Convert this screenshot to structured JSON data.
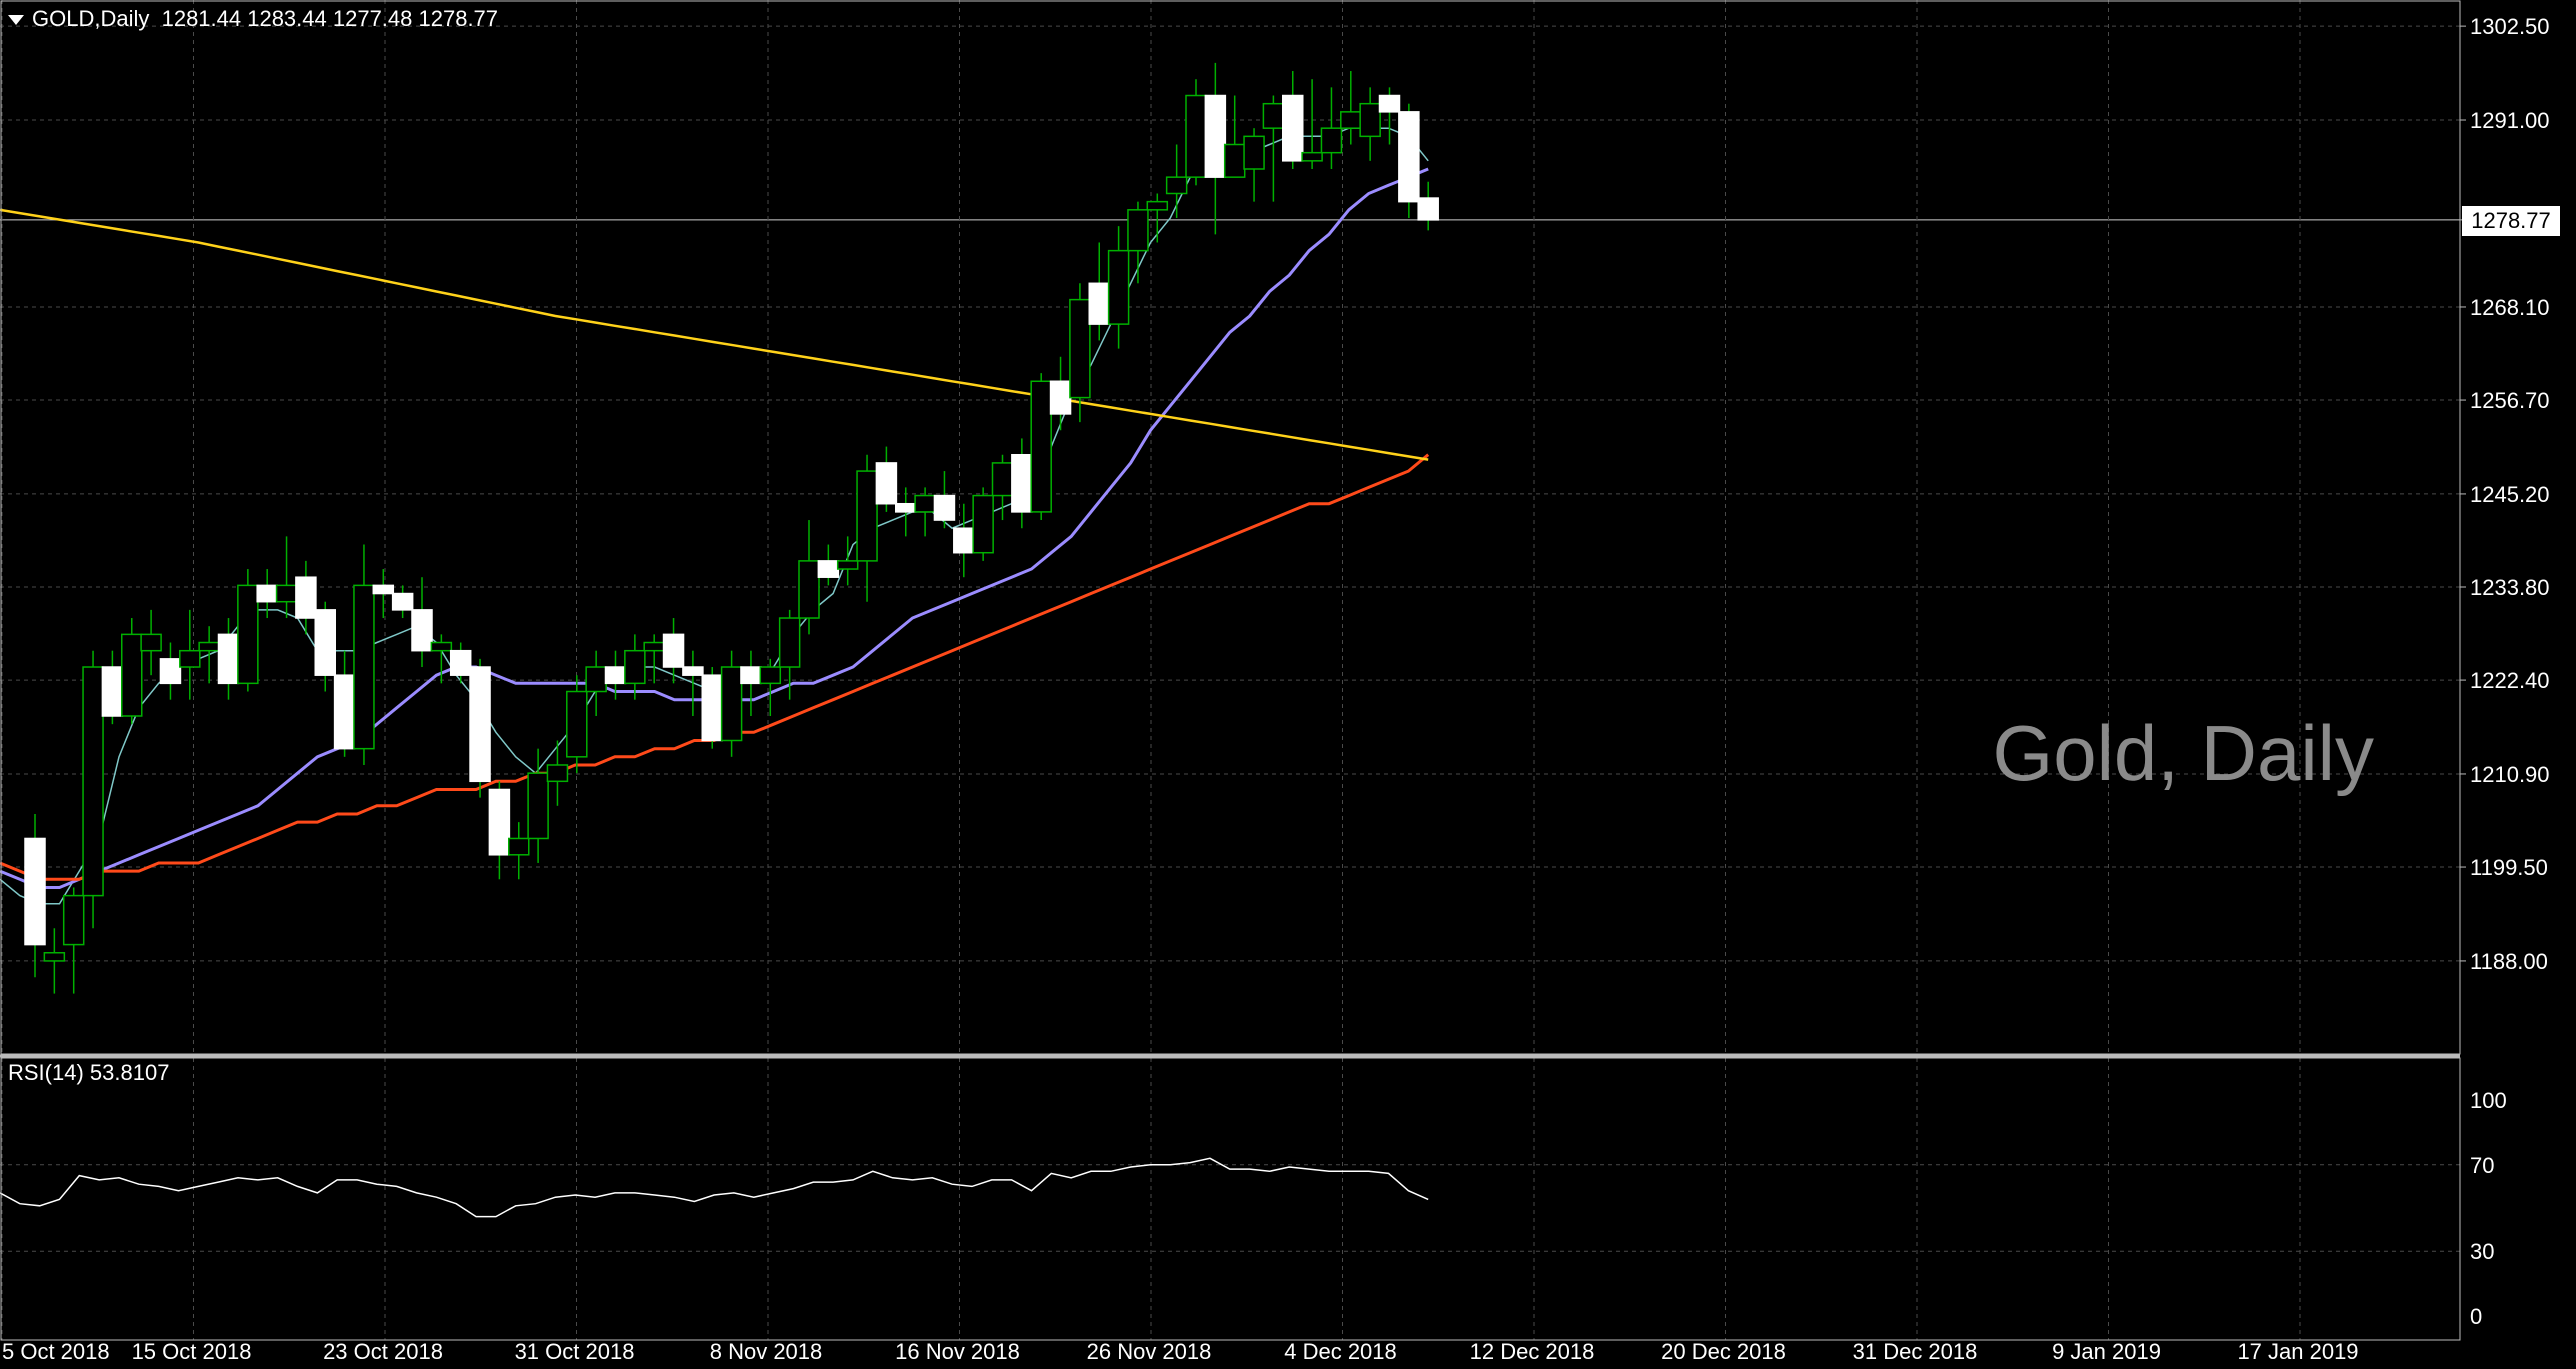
{
  "header": {
    "symbol": "GOLD,Daily",
    "ohlc": "1281.44 1283.44 1277.48 1278.77"
  },
  "watermark": "Gold, Daily",
  "current_price_label": "1278.77",
  "rsi": {
    "label": "RSI(14) 53.8107"
  },
  "colors": {
    "background": "#000000",
    "grid": "#4a4a4a",
    "candle": "#ffffff",
    "wick": "#00b000",
    "ma_fast": "#7fc8c8",
    "ma_mid": "#9b8cff",
    "ma_slow": "#ff4a1a",
    "ma_long": "#ffd21a",
    "rsi_line": "#ffffff"
  },
  "chart_data": [
    {
      "type": "candlestick",
      "title": "Gold, Daily",
      "y_ticks": [
        "1302.50",
        "1291.00",
        "1278.77",
        "1268.10",
        "1256.70",
        "1245.20",
        "1233.80",
        "1222.40",
        "1210.90",
        "1199.50",
        "1188.00"
      ],
      "ylim": [
        1176.6,
        1305.7
      ],
      "x_ticks": [
        "5 Oct 2018",
        "15 Oct 2018",
        "23 Oct 2018",
        "31 Oct 2018",
        "8 Nov 2018",
        "16 Nov 2018",
        "26 Nov 2018",
        "4 Dec 2018",
        "12 Dec 2018",
        "20 Dec 2018",
        "31 Dec 2018",
        "9 Jan 2019",
        "17 Jan 2019"
      ],
      "grid": true,
      "candles": [
        {
          "o": 1203,
          "h": 1206,
          "l": 1186,
          "c": 1190
        },
        {
          "o": 1188,
          "h": 1192,
          "l": 1184,
          "c": 1189
        },
        {
          "o": 1190,
          "h": 1197,
          "l": 1184,
          "c": 1196
        },
        {
          "o": 1196,
          "h": 1226,
          "l": 1192,
          "c": 1224
        },
        {
          "o": 1224,
          "h": 1226,
          "l": 1217,
          "c": 1218
        },
        {
          "o": 1218,
          "h": 1230,
          "l": 1217,
          "c": 1228
        },
        {
          "o": 1226,
          "h": 1231,
          "l": 1223,
          "c": 1228
        },
        {
          "o": 1225,
          "h": 1227,
          "l": 1220,
          "c": 1222
        },
        {
          "o": 1224,
          "h": 1231,
          "l": 1220,
          "c": 1226
        },
        {
          "o": 1226,
          "h": 1229,
          "l": 1222,
          "c": 1227
        },
        {
          "o": 1228,
          "h": 1230,
          "l": 1220,
          "c": 1222
        },
        {
          "o": 1222,
          "h": 1236,
          "l": 1221,
          "c": 1234
        },
        {
          "o": 1234,
          "h": 1236,
          "l": 1230,
          "c": 1232
        },
        {
          "o": 1232,
          "h": 1240,
          "l": 1230,
          "c": 1234
        },
        {
          "o": 1235,
          "h": 1237,
          "l": 1228,
          "c": 1230
        },
        {
          "o": 1231,
          "h": 1232,
          "l": 1221,
          "c": 1223
        },
        {
          "o": 1223,
          "h": 1226,
          "l": 1213,
          "c": 1214
        },
        {
          "o": 1214,
          "h": 1239,
          "l": 1212,
          "c": 1234
        },
        {
          "o": 1234,
          "h": 1236,
          "l": 1230,
          "c": 1233
        },
        {
          "o": 1233,
          "h": 1234,
          "l": 1230,
          "c": 1231
        },
        {
          "o": 1231,
          "h": 1235,
          "l": 1224,
          "c": 1226
        },
        {
          "o": 1226,
          "h": 1228,
          "l": 1222,
          "c": 1227
        },
        {
          "o": 1226,
          "h": 1227,
          "l": 1222,
          "c": 1223
        },
        {
          "o": 1224,
          "h": 1225,
          "l": 1208,
          "c": 1210
        },
        {
          "o": 1209,
          "h": 1210,
          "l": 1198,
          "c": 1201
        },
        {
          "o": 1201,
          "h": 1205,
          "l": 1198,
          "c": 1203
        },
        {
          "o": 1203,
          "h": 1214,
          "l": 1200,
          "c": 1211
        },
        {
          "o": 1210,
          "h": 1215,
          "l": 1207,
          "c": 1212
        },
        {
          "o": 1213,
          "h": 1223,
          "l": 1211,
          "c": 1221
        },
        {
          "o": 1221,
          "h": 1226,
          "l": 1218,
          "c": 1224
        },
        {
          "o": 1224,
          "h": 1226,
          "l": 1220,
          "c": 1222
        },
        {
          "o": 1222,
          "h": 1228,
          "l": 1220,
          "c": 1226
        },
        {
          "o": 1226,
          "h": 1228,
          "l": 1222,
          "c": 1227
        },
        {
          "o": 1228,
          "h": 1230,
          "l": 1222,
          "c": 1224
        },
        {
          "o": 1224,
          "h": 1226,
          "l": 1218,
          "c": 1223
        },
        {
          "o": 1223,
          "h": 1224,
          "l": 1214,
          "c": 1215
        },
        {
          "o": 1215,
          "h": 1226,
          "l": 1213,
          "c": 1224
        },
        {
          "o": 1224,
          "h": 1226,
          "l": 1218,
          "c": 1222
        },
        {
          "o": 1222,
          "h": 1225,
          "l": 1218,
          "c": 1224
        },
        {
          "o": 1224,
          "h": 1231,
          "l": 1220,
          "c": 1230
        },
        {
          "o": 1230,
          "h": 1242,
          "l": 1228,
          "c": 1237
        },
        {
          "o": 1237,
          "h": 1239,
          "l": 1234,
          "c": 1235
        },
        {
          "o": 1236,
          "h": 1240,
          "l": 1234,
          "c": 1237
        },
        {
          "o": 1237,
          "h": 1250,
          "l": 1232,
          "c": 1248
        },
        {
          "o": 1249,
          "h": 1251,
          "l": 1243,
          "c": 1244
        },
        {
          "o": 1244,
          "h": 1246,
          "l": 1240,
          "c": 1243
        },
        {
          "o": 1243,
          "h": 1246,
          "l": 1240,
          "c": 1245
        },
        {
          "o": 1245,
          "h": 1248,
          "l": 1241,
          "c": 1242
        },
        {
          "o": 1241,
          "h": 1244,
          "l": 1235,
          "c": 1238
        },
        {
          "o": 1238,
          "h": 1246,
          "l": 1237,
          "c": 1245
        },
        {
          "o": 1245,
          "h": 1250,
          "l": 1242,
          "c": 1249
        },
        {
          "o": 1250,
          "h": 1252,
          "l": 1241,
          "c": 1243
        },
        {
          "o": 1243,
          "h": 1260,
          "l": 1242,
          "c": 1259
        },
        {
          "o": 1259,
          "h": 1262,
          "l": 1253,
          "c": 1255
        },
        {
          "o": 1257,
          "h": 1271,
          "l": 1254,
          "c": 1269
        },
        {
          "o": 1271,
          "h": 1276,
          "l": 1264,
          "c": 1266
        },
        {
          "o": 1266,
          "h": 1278,
          "l": 1263,
          "c": 1275
        },
        {
          "o": 1275,
          "h": 1281,
          "l": 1271,
          "c": 1280
        },
        {
          "o": 1280,
          "h": 1282,
          "l": 1276,
          "c": 1281
        },
        {
          "o": 1282,
          "h": 1288,
          "l": 1279,
          "c": 1284
        },
        {
          "o": 1284,
          "h": 1296,
          "l": 1283,
          "c": 1294
        },
        {
          "o": 1294,
          "h": 1298,
          "l": 1277,
          "c": 1284
        },
        {
          "o": 1284,
          "h": 1294,
          "l": 1284,
          "c": 1288
        },
        {
          "o": 1285,
          "h": 1290,
          "l": 1281,
          "c": 1289
        },
        {
          "o": 1290,
          "h": 1294,
          "l": 1281,
          "c": 1293
        },
        {
          "o": 1294,
          "h": 1297,
          "l": 1285,
          "c": 1286
        },
        {
          "o": 1286,
          "h": 1296,
          "l": 1285,
          "c": 1287
        },
        {
          "o": 1287,
          "h": 1295,
          "l": 1285,
          "c": 1290
        },
        {
          "o": 1290,
          "h": 1297,
          "l": 1288,
          "c": 1292
        },
        {
          "o": 1289,
          "h": 1295,
          "l": 1286,
          "c": 1293
        },
        {
          "o": 1294,
          "h": 1295,
          "l": 1288,
          "c": 1292
        },
        {
          "o": 1292,
          "h": 1293,
          "l": 1279,
          "c": 1281
        },
        {
          "o": 1281.44,
          "h": 1283.44,
          "l": 1277.48,
          "c": 1278.77
        }
      ],
      "series": [
        {
          "values": [
            1198,
            1196,
            1195,
            1195,
            1199,
            1203,
            1213,
            1219,
            1222,
            1224,
            1225,
            1226,
            1229,
            1231,
            1231,
            1230,
            1226,
            1226,
            1226,
            1227,
            1228,
            1229,
            1227,
            1223,
            1220,
            1216,
            1213,
            1211,
            1214,
            1217,
            1221,
            1223,
            1224,
            1224,
            1223,
            1222,
            1221,
            1222,
            1222,
            1224,
            1228,
            1231,
            1233,
            1239,
            1241,
            1242,
            1243,
            1243,
            1241,
            1242,
            1243,
            1244,
            1248,
            1251,
            1257,
            1261,
            1266,
            1271,
            1276,
            1279,
            1284,
            1286,
            1287,
            1287,
            1288,
            1289,
            1289,
            1289,
            1290,
            1290,
            1290,
            1289,
            1286
          ]
        },
        {
          "values": [
            1199,
            1198,
            1197,
            1197,
            1198,
            1199,
            1200,
            1201,
            1202,
            1203,
            1204,
            1205,
            1206,
            1207,
            1209,
            1211,
            1213,
            1214,
            1215,
            1217,
            1219,
            1221,
            1223,
            1224,
            1224,
            1223,
            1222,
            1222,
            1222,
            1222,
            1222,
            1221,
            1221,
            1221,
            1220,
            1220,
            1220,
            1220,
            1220,
            1221,
            1222,
            1222,
            1223,
            1224,
            1226,
            1228,
            1230,
            1231,
            1232,
            1233,
            1234,
            1235,
            1236,
            1238,
            1240,
            1243,
            1246,
            1249,
            1253,
            1256,
            1259,
            1262,
            1265,
            1267,
            1270,
            1272,
            1275,
            1277,
            1280,
            1282,
            1283,
            1284,
            1285
          ]
        },
        {
          "values": [
            1200,
            1199,
            1198,
            1198,
            1198,
            1199,
            1199,
            1199,
            1200,
            1200,
            1200,
            1201,
            1202,
            1203,
            1204,
            1205,
            1205,
            1206,
            1206,
            1207,
            1207,
            1208,
            1209,
            1209,
            1209,
            1210,
            1210,
            1211,
            1211,
            1212,
            1212,
            1213,
            1213,
            1214,
            1214,
            1215,
            1215,
            1216,
            1216,
            1217,
            1218,
            1219,
            1220,
            1221,
            1222,
            1223,
            1224,
            1225,
            1226,
            1227,
            1228,
            1229,
            1230,
            1231,
            1232,
            1233,
            1234,
            1235,
            1236,
            1237,
            1238,
            1239,
            1240,
            1241,
            1242,
            1243,
            1244,
            1244,
            1245,
            1246,
            1247,
            1248,
            1250
          ]
        },
        {
          "values": [
            1280,
            1279.6,
            1279.2,
            1278.8,
            1278.4,
            1278,
            1277.6,
            1277.2,
            1276.8,
            1276.4,
            1276,
            1275.5,
            1275,
            1274.5,
            1274,
            1273.5,
            1273,
            1272.5,
            1272,
            1271.5,
            1271,
            1270.5,
            1270,
            1269.5,
            1269,
            1268.5,
            1268,
            1267.5,
            1267,
            1266.6,
            1266.2,
            1265.8,
            1265.4,
            1265,
            1264.6,
            1264.2,
            1263.8,
            1263.4,
            1263,
            1262.6,
            1262.2,
            1261.8,
            1261.4,
            1261,
            1260.6,
            1260.2,
            1259.8,
            1259.4,
            1259,
            1258.6,
            1258.2,
            1257.8,
            1257.4,
            1257,
            1256.6,
            1256.2,
            1255.8,
            1255.4,
            1255,
            1254.6,
            1254.2,
            1253.8,
            1253.4,
            1253,
            1252.6,
            1252.2,
            1251.8,
            1251.4,
            1251,
            1250.6,
            1250.2,
            1249.8,
            1249.4
          ]
        }
      ]
    },
    {
      "type": "line",
      "title": "RSI(14) 53.8107",
      "ylim": [
        0,
        100
      ],
      "y_ticks": [
        "100",
        "70",
        "30",
        "0"
      ],
      "series": [
        {
          "values": [
            57,
            52,
            51,
            54,
            65,
            63,
            64,
            61,
            60,
            58,
            60,
            62,
            64,
            63,
            64,
            60,
            57,
            63,
            63,
            61,
            60,
            57,
            55,
            52,
            46,
            46,
            51,
            52,
            55,
            56,
            55,
            57,
            57,
            56,
            55,
            53,
            56,
            57,
            55,
            57,
            59,
            62,
            62,
            63,
            67,
            64,
            63,
            64,
            61,
            60,
            63,
            63,
            58,
            66,
            64,
            67,
            67,
            69,
            70,
            70,
            71,
            73,
            68,
            68,
            67,
            69,
            68,
            67,
            67,
            67,
            66,
            58,
            54
          ]
        }
      ]
    }
  ]
}
